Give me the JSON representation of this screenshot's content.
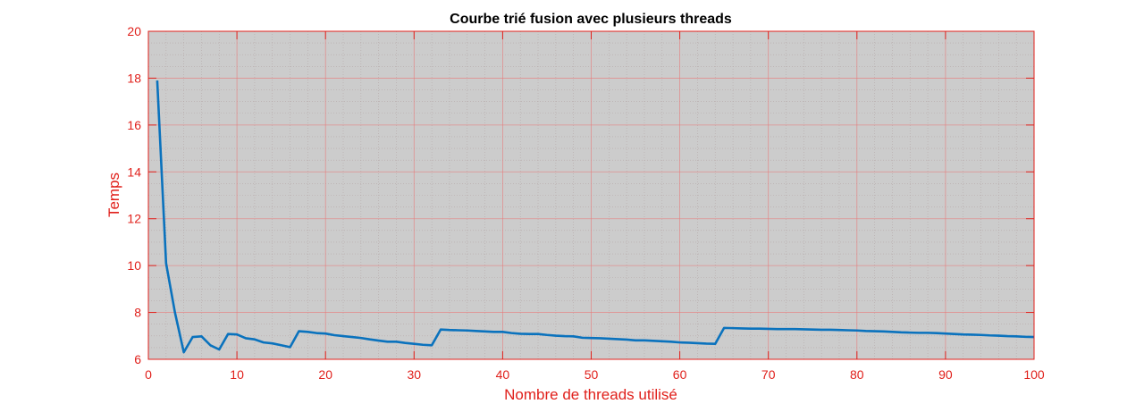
{
  "colors": {
    "axis": "#e0201b",
    "plot_background": "#cccccc",
    "major_grid": "#e87878",
    "minor_grid": "#b0a0a0",
    "line": "#0a72bd",
    "title": "#000000"
  },
  "chart_data": {
    "type": "line",
    "title": "Courbe trié fusion avec plusieurs threads",
    "xlabel": "Nombre de threads utilisé",
    "ylabel": "Temps",
    "xlim": [
      0,
      100
    ],
    "ylim": [
      6,
      20
    ],
    "xticks": [
      0,
      10,
      20,
      30,
      40,
      50,
      60,
      70,
      80,
      90,
      100
    ],
    "yticks": [
      6,
      8,
      10,
      12,
      14,
      16,
      18,
      20
    ],
    "grid": true,
    "minor_grid": true,
    "legend": "none",
    "x": [
      1,
      2,
      3,
      4,
      5,
      6,
      7,
      8,
      9,
      10,
      11,
      12,
      13,
      14,
      15,
      16,
      17,
      18,
      19,
      20,
      21,
      22,
      23,
      24,
      25,
      26,
      27,
      28,
      29,
      30,
      31,
      32,
      33,
      34,
      35,
      36,
      37,
      38,
      39,
      40,
      41,
      42,
      43,
      44,
      45,
      46,
      47,
      48,
      49,
      50,
      51,
      52,
      53,
      54,
      55,
      56,
      57,
      58,
      59,
      60,
      61,
      62,
      63,
      64,
      65,
      66,
      67,
      68,
      69,
      70,
      71,
      72,
      73,
      74,
      75,
      76,
      77,
      78,
      79,
      80,
      81,
      82,
      83,
      84,
      85,
      86,
      87,
      88,
      89,
      90,
      91,
      92,
      93,
      94,
      95,
      96,
      97,
      98,
      99,
      100
    ],
    "y": [
      17.9,
      10.1,
      8.0,
      6.3,
      6.95,
      6.98,
      6.6,
      6.42,
      7.08,
      7.06,
      6.9,
      6.85,
      6.72,
      6.68,
      6.6,
      6.52,
      7.2,
      7.17,
      7.12,
      7.1,
      7.03,
      6.99,
      6.95,
      6.91,
      6.85,
      6.8,
      6.75,
      6.75,
      6.7,
      6.66,
      6.62,
      6.6,
      7.27,
      7.25,
      7.24,
      7.23,
      7.21,
      7.19,
      7.17,
      7.17,
      7.12,
      7.09,
      7.08,
      7.08,
      7.04,
      7.01,
      6.99,
      6.98,
      6.92,
      6.91,
      6.9,
      6.88,
      6.86,
      6.84,
      6.81,
      6.81,
      6.79,
      6.77,
      6.75,
      6.72,
      6.71,
      6.69,
      6.67,
      6.66,
      7.34,
      7.33,
      7.32,
      7.31,
      7.31,
      7.3,
      7.29,
      7.29,
      7.29,
      7.28,
      7.27,
      7.26,
      7.26,
      7.25,
      7.24,
      7.23,
      7.21,
      7.2,
      7.19,
      7.17,
      7.15,
      7.14,
      7.13,
      7.13,
      7.12,
      7.1,
      7.08,
      7.06,
      7.05,
      7.04,
      7.02,
      7.01,
      6.99,
      6.98,
      6.96,
      6.95
    ]
  }
}
